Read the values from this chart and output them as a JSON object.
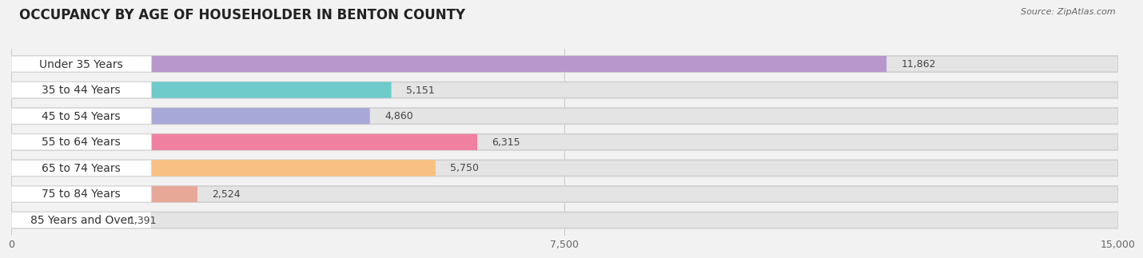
{
  "title": "OCCUPANCY BY AGE OF HOUSEHOLDER IN BENTON COUNTY",
  "source": "Source: ZipAtlas.com",
  "categories": [
    "Under 35 Years",
    "35 to 44 Years",
    "45 to 54 Years",
    "55 to 64 Years",
    "65 to 74 Years",
    "75 to 84 Years",
    "85 Years and Over"
  ],
  "values": [
    11862,
    5151,
    4860,
    6315,
    5750,
    2524,
    1391
  ],
  "colors": [
    "#b898cc",
    "#6ecbca",
    "#a8a8d8",
    "#f080a0",
    "#f8c080",
    "#e8a898",
    "#a8c8e8"
  ],
  "xlim_min": 0,
  "xlim_max": 15000,
  "xticks": [
    0,
    7500,
    15000
  ],
  "bar_height": 0.62,
  "background_color": "#f2f2f2",
  "bar_bg_color": "#e4e4e4",
  "title_fontsize": 12,
  "label_fontsize": 10,
  "value_fontsize": 9,
  "source_fontsize": 8
}
